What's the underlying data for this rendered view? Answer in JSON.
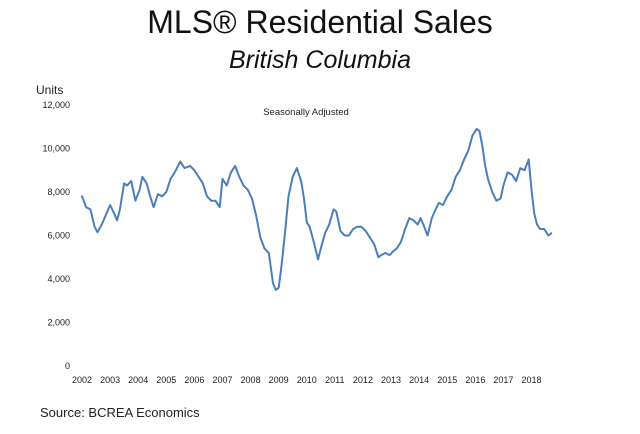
{
  "title": "MLS® Residential Sales",
  "subtitle": "British Columbia",
  "source": "Source: BCREA Economics",
  "chart_data": {
    "type": "line",
    "title": "MLS® Residential Sales",
    "subtitle": "British Columbia",
    "annotation": "Seasonally Adjusted",
    "xlabel": "",
    "ylabel": "Units",
    "xlim": [
      2002,
      2018.8
    ],
    "ylim": [
      0,
      12000
    ],
    "y_ticks": [
      0,
      2000,
      4000,
      6000,
      8000,
      10000,
      12000
    ],
    "y_tick_labels": [
      "0",
      "2,000",
      "4,000",
      "6,000",
      "8,000",
      "10,000",
      "12,000"
    ],
    "x_ticks": [
      2002,
      2003,
      2004,
      2005,
      2006,
      2007,
      2008,
      2009,
      2010,
      2011,
      2012,
      2013,
      2014,
      2015,
      2016,
      2017,
      2018
    ],
    "x_tick_labels": [
      "2002",
      "2003",
      "2004",
      "2005",
      "2006",
      "2007",
      "2008",
      "2009",
      "2010",
      "2011",
      "2012",
      "2013",
      "2014",
      "2015",
      "2016",
      "2017",
      "2018"
    ],
    "grid": false,
    "color": "#4a7ebb",
    "series": [
      {
        "name": "MLS® Residential Sales (SA)",
        "x": [
          2002.0,
          2002.15,
          2002.3,
          2002.45,
          2002.55,
          2002.7,
          2002.9,
          2003.0,
          2003.15,
          2003.25,
          2003.35,
          2003.5,
          2003.6,
          2003.75,
          2003.9,
          2004.05,
          2004.15,
          2004.3,
          2004.45,
          2004.55,
          2004.7,
          2004.85,
          2005.0,
          2005.15,
          2005.3,
          2005.5,
          2005.65,
          2005.85,
          2006.0,
          2006.15,
          2006.3,
          2006.45,
          2006.6,
          2006.75,
          2006.9,
          2007.0,
          2007.15,
          2007.3,
          2007.45,
          2007.6,
          2007.75,
          2007.9,
          2008.05,
          2008.2,
          2008.35,
          2008.5,
          2008.65,
          2008.8,
          2008.9,
          2009.0,
          2009.1,
          2009.2,
          2009.35,
          2009.5,
          2009.65,
          2009.8,
          2009.9,
          2010.0,
          2010.1,
          2010.25,
          2010.4,
          2010.5,
          2010.65,
          2010.8,
          2010.95,
          2011.05,
          2011.2,
          2011.35,
          2011.5,
          2011.65,
          2011.8,
          2011.95,
          2012.1,
          2012.25,
          2012.4,
          2012.55,
          2012.65,
          2012.8,
          2012.95,
          2013.1,
          2013.2,
          2013.35,
          2013.5,
          2013.65,
          2013.8,
          2013.95,
          2014.05,
          2014.15,
          2014.3,
          2014.45,
          2014.55,
          2014.7,
          2014.85,
          2015.0,
          2015.15,
          2015.3,
          2015.45,
          2015.6,
          2015.75,
          2015.9,
          2016.05,
          2016.15,
          2016.25,
          2016.35,
          2016.45,
          2016.6,
          2016.75,
          2016.9,
          2017.0,
          2017.15,
          2017.3,
          2017.45,
          2017.6,
          2017.75,
          2017.9,
          2018.0,
          2018.1,
          2018.2,
          2018.3,
          2018.45,
          2018.6,
          2018.7
        ],
        "values": [
          7800,
          7300,
          7200,
          6400,
          6150,
          6500,
          7100,
          7400,
          7000,
          6700,
          7200,
          8400,
          8300,
          8500,
          7600,
          8100,
          8700,
          8400,
          7700,
          7300,
          7900,
          7800,
          8000,
          8600,
          8900,
          9400,
          9100,
          9200,
          9000,
          8700,
          8400,
          7800,
          7600,
          7600,
          7300,
          8600,
          8300,
          8900,
          9200,
          8700,
          8300,
          8100,
          7700,
          6900,
          5900,
          5400,
          5200,
          3800,
          3500,
          3600,
          4600,
          5800,
          7800,
          8700,
          9100,
          8500,
          7700,
          6600,
          6400,
          5700,
          4900,
          5400,
          6100,
          6500,
          7200,
          7100,
          6200,
          6000,
          6000,
          6300,
          6400,
          6400,
          6200,
          5900,
          5600,
          5000,
          5100,
          5200,
          5100,
          5300,
          5400,
          5700,
          6300,
          6800,
          6700,
          6500,
          6800,
          6500,
          6000,
          6800,
          7100,
          7500,
          7400,
          7800,
          8100,
          8700,
          9000,
          9500,
          9900,
          10600,
          10900,
          10800,
          10100,
          9200,
          8600,
          8000,
          7600,
          7700,
          8300,
          8900,
          8800,
          8500,
          9100,
          9000,
          9500,
          8100,
          7000,
          6500,
          6300,
          6300,
          6000,
          6100
        ]
      }
    ]
  }
}
